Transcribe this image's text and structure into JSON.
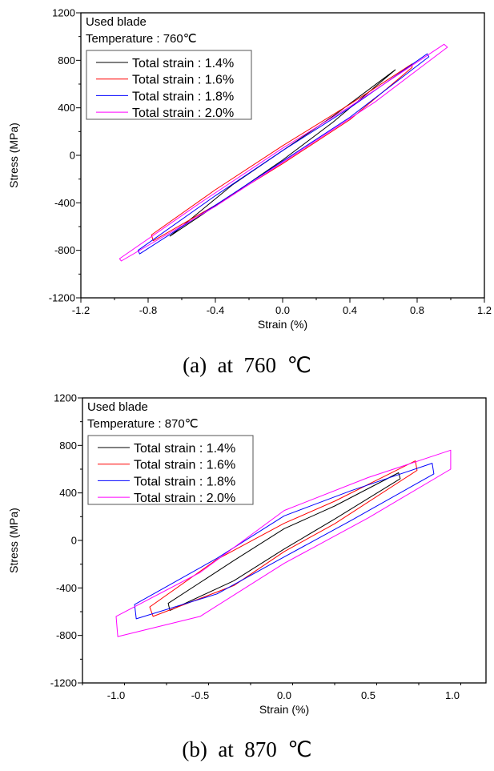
{
  "chart_data": [
    {
      "type": "line",
      "caption": "(a)  at  760  ℃",
      "annotation": [
        "Used blade",
        "Temperature : 760℃"
      ],
      "xlabel": "Strain (%)",
      "ylabel": "Stress (MPa)",
      "xlim": [
        -1.2,
        1.2
      ],
      "ylim": [
        -1200,
        1200
      ],
      "xticks": [
        -1.2,
        -0.8,
        -0.4,
        0.0,
        0.4,
        0.8,
        1.2
      ],
      "xtick_labels": [
        "-1.2",
        "-0.8",
        "-0.4",
        "0.0",
        "0.4",
        "0.8",
        "1.2"
      ],
      "xminor": 0.2,
      "yticks": [
        -1200,
        -800,
        -400,
        0,
        400,
        800,
        1200
      ],
      "ytick_labels": [
        "-1200",
        "-800",
        "-400",
        "0",
        "400",
        "800",
        "1200"
      ],
      "yminor": 200,
      "grid": false,
      "legend_placement": "top-left",
      "series": [
        {
          "name": "Total strain : 1.4%",
          "color": "#000000",
          "loop": [
            [
              -0.67,
              -680
            ],
            [
              -0.3,
              -250
            ],
            [
              0,
              40
            ],
            [
              0.3,
              330
            ],
            [
              0.67,
              720
            ],
            [
              0.3,
              280
            ],
            [
              0,
              -40
            ],
            [
              -0.3,
              -330
            ]
          ]
        },
        {
          "name": "Total strain : 1.6%",
          "color": "#ff0000",
          "loop": [
            [
              -0.78,
              -670
            ],
            [
              -0.77,
              -720
            ],
            [
              -0.4,
              -420
            ],
            [
              0,
              -70
            ],
            [
              0.4,
              300
            ],
            [
              0.77,
              740
            ],
            [
              0.77,
              770
            ],
            [
              0.4,
              430
            ],
            [
              0,
              80
            ],
            [
              -0.4,
              -290
            ]
          ]
        },
        {
          "name": "Total strain : 1.8%",
          "color": "#0000ff",
          "loop": [
            [
              -0.86,
              -800
            ],
            [
              -0.85,
              -830
            ],
            [
              -0.4,
              -420
            ],
            [
              0,
              -50
            ],
            [
              0.4,
              320
            ],
            [
              0.87,
              830
            ],
            [
              0.86,
              855
            ],
            [
              0.4,
              400
            ],
            [
              0,
              40
            ],
            [
              -0.4,
              -340
            ]
          ]
        },
        {
          "name": "Total strain : 2.0%",
          "color": "#ff00ff",
          "loop": [
            [
              -0.97,
              -870
            ],
            [
              -0.96,
              -890
            ],
            [
              -0.4,
              -430
            ],
            [
              0,
              -60
            ],
            [
              0.55,
              450
            ],
            [
              0.98,
              910
            ],
            [
              0.96,
              935
            ],
            [
              0.4,
              410
            ],
            [
              0,
              60
            ],
            [
              -0.5,
              -410
            ]
          ]
        }
      ]
    },
    {
      "type": "line",
      "caption": "(b)  at  870  ℃",
      "annotation": [
        "Used blade",
        "Temperature : 870℃"
      ],
      "xlabel": "Strain (%)",
      "ylabel": "Stress (MPa)",
      "xlim": [
        -1.2,
        1.2
      ],
      "ylim": [
        -1200,
        1200
      ],
      "xticks": [
        -1.0,
        -0.5,
        0.0,
        0.5,
        1.0
      ],
      "xtick_labels": [
        "-1.0",
        "-0.5",
        "0.0",
        "0.5",
        "1.0"
      ],
      "xminor": 0.25,
      "yticks": [
        -1200,
        -800,
        -400,
        0,
        400,
        800,
        1200
      ],
      "ytick_labels": [
        "-1200",
        "-800",
        "-400",
        "0",
        "400",
        "800",
        "1200"
      ],
      "yminor": 200,
      "grid": false,
      "legend_placement": "top-left",
      "series": [
        {
          "name": "Total strain : 1.4%",
          "color": "#000000",
          "loop": [
            [
              -0.69,
              -530
            ],
            [
              -0.68,
              -590
            ],
            [
              -0.3,
              -340
            ],
            [
              0,
              -72
            ],
            [
              0.3,
              180
            ],
            [
              0.69,
              520
            ],
            [
              0.68,
              570
            ],
            [
              0.3,
              290
            ],
            [
              0,
              99
            ],
            [
              -0.3,
              -170
            ]
          ]
        },
        {
          "name": "Total strain : 1.6%",
          "color": "#ff0000",
          "loop": [
            [
              -0.8,
              -560
            ],
            [
              -0.78,
              -640
            ],
            [
              -0.3,
              -380
            ],
            [
              0,
              -94
            ],
            [
              0.3,
              140
            ],
            [
              0.79,
              590
            ],
            [
              0.78,
              670
            ],
            [
              0.3,
              330
            ],
            [
              0,
              144
            ],
            [
              -0.4,
              -160
            ]
          ]
        },
        {
          "name": "Total strain : 1.8%",
          "color": "#0000ff",
          "loop": [
            [
              -0.89,
              -540
            ],
            [
              -0.88,
              -660
            ],
            [
              -0.4,
              -450
            ],
            [
              0,
              -139
            ],
            [
              0.4,
              170
            ],
            [
              0.89,
              560
            ],
            [
              0.88,
              650
            ],
            [
              0.4,
              420
            ],
            [
              0,
              207
            ],
            [
              -0.4,
              -150
            ]
          ]
        },
        {
          "name": "Total strain : 2.0%",
          "color": "#ff00ff",
          "loop": [
            [
              -1.0,
              -640
            ],
            [
              -0.99,
              -810
            ],
            [
              -0.5,
              -640
            ],
            [
              0,
              -193
            ],
            [
              0.5,
              190
            ],
            [
              0.99,
              600
            ],
            [
              0.99,
              760
            ],
            [
              0.5,
              530
            ],
            [
              0,
              252
            ],
            [
              -0.5,
              -270
            ]
          ]
        }
      ]
    }
  ]
}
